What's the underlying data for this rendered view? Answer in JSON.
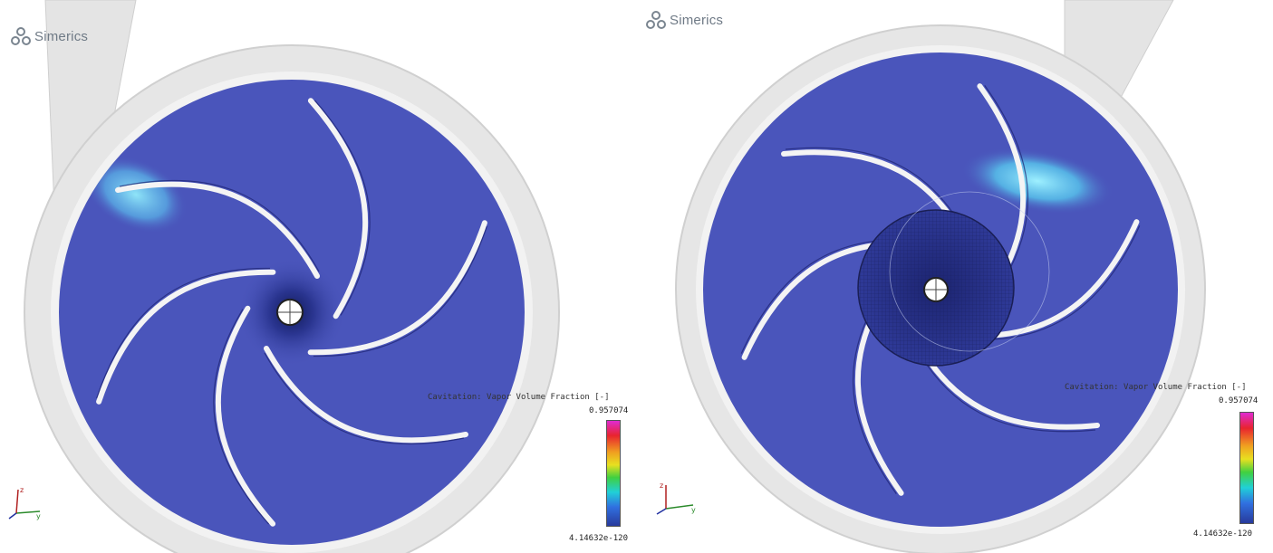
{
  "panels": [
    {
      "logo_text": "Simerics",
      "legend": {
        "title": "Cavitation: Vapor Volume Fraction [-]",
        "max_label": "0.957074",
        "min_label": "4.14632e-120"
      }
    },
    {
      "logo_text": "Simerics",
      "legend": {
        "title": "Cavitation: Vapor Volume Fraction [-]",
        "max_label": "0.957074",
        "min_label": "4.14632e-120"
      }
    }
  ],
  "icons": {
    "logo": "simerics-logo-icon",
    "axes": "xyz-axes-icon"
  },
  "colors": {
    "fluid_blue": "#4a55bb",
    "casing_grey": "#e4e4e4",
    "vapor_cyan": "#6fd3f0"
  }
}
